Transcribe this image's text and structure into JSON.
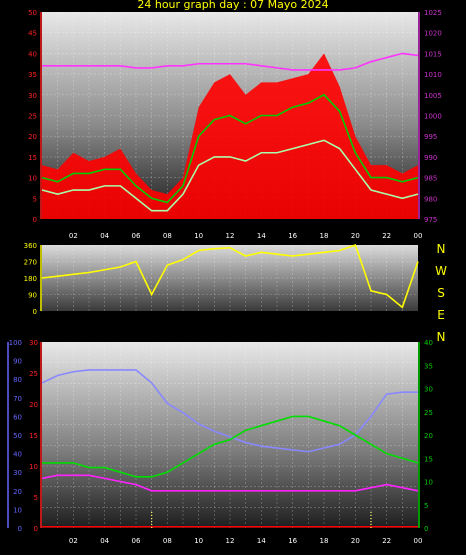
{
  "title": "24 hour graph day : 07 Mayo 2024",
  "x_ticks": [
    "02",
    "04",
    "06",
    "08",
    "10",
    "12",
    "14",
    "16",
    "18",
    "20",
    "22",
    "00"
  ],
  "chart_data": [
    {
      "type": "line",
      "yleft": {
        "ticks": [
          0,
          5,
          10,
          15,
          20,
          25,
          30,
          35,
          40,
          45,
          50
        ],
        "color": "#ff2020",
        "range": [
          0,
          50
        ]
      },
      "yright": {
        "ticks": [
          975,
          980,
          985,
          990,
          995,
          1000,
          1005,
          1010,
          1015,
          1020,
          1025
        ],
        "color": "#cc33cc",
        "range": [
          975,
          1025
        ]
      },
      "x": [
        0,
        1,
        2,
        3,
        4,
        5,
        6,
        7,
        8,
        9,
        10,
        11,
        12,
        13,
        14,
        15,
        16,
        17,
        18,
        19,
        20,
        21,
        22,
        23,
        24
      ],
      "series": [
        {
          "name": "",
          "color": "#ff0000",
          "kind": "bar",
          "axis": "left",
          "values": [
            13,
            12,
            16,
            14,
            15,
            17,
            11,
            7,
            6,
            10,
            27,
            33,
            35,
            30,
            33,
            33,
            34,
            35,
            40,
            32,
            20,
            13,
            13,
            11,
            13
          ]
        },
        {
          "name": "",
          "color": "#00cc00",
          "kind": "line",
          "axis": "left",
          "values": [
            10,
            9,
            11,
            11,
            12,
            12,
            8,
            5,
            4,
            8,
            20,
            24,
            25,
            23,
            25,
            25,
            27,
            28,
            30,
            26,
            16,
            10,
            10,
            9,
            10
          ]
        },
        {
          "name": "",
          "color": "#aaffaa",
          "kind": "line",
          "axis": "left",
          "values": [
            7,
            6,
            7,
            7,
            8,
            8,
            5,
            2,
            2,
            6,
            13,
            15,
            15,
            14,
            16,
            16,
            17,
            18,
            19,
            17,
            12,
            7,
            6,
            5,
            6
          ]
        },
        {
          "name": "",
          "color": "#ff33ff",
          "kind": "line",
          "axis": "right",
          "values": [
            1012,
            1012,
            1012,
            1012,
            1012,
            1012,
            1011.5,
            1011.5,
            1012,
            1012,
            1012.5,
            1012.5,
            1012.5,
            1012.5,
            1012,
            1011.5,
            1011,
            1011,
            1011,
            1011,
            1011.5,
            1013,
            1014,
            1015,
            1014.5
          ]
        }
      ]
    },
    {
      "type": "line",
      "yleft": {
        "ticks": [
          0,
          90,
          180,
          270,
          360
        ],
        "color": "#ffff00",
        "range": [
          0,
          360
        ]
      },
      "directions": [
        "N",
        "W",
        "S",
        "E",
        "N"
      ],
      "series": [
        {
          "name": "",
          "color": "#ffff00",
          "kind": "line",
          "axis": "left",
          "values": [
            180,
            190,
            200,
            210,
            225,
            240,
            270,
            90,
            250,
            280,
            330,
            340,
            345,
            300,
            320,
            310,
            300,
            310,
            320,
            330,
            360,
            110,
            90,
            20,
            270
          ]
        }
      ]
    },
    {
      "type": "line",
      "yleft_outer": {
        "ticks": [
          0,
          10,
          20,
          30,
          40,
          50,
          60,
          70,
          80,
          90,
          100
        ],
        "color": "#6666ff",
        "range": [
          0,
          100
        ]
      },
      "yleft_inner": {
        "ticks": [
          0,
          5,
          10,
          15,
          20,
          25,
          30
        ],
        "color": "#ff2020",
        "range": [
          0,
          30
        ]
      },
      "yright": {
        "ticks": [
          0,
          5,
          10,
          15,
          20,
          25,
          30,
          35,
          40
        ],
        "color": "#00cc00",
        "range": [
          0,
          40
        ]
      },
      "series": [
        {
          "name": "",
          "color": "#8888ff",
          "kind": "line",
          "axis": "outer",
          "values": [
            78,
            82,
            84,
            85,
            85,
            85,
            85,
            78,
            67,
            62,
            56,
            52,
            49,
            46,
            44,
            43,
            42,
            41,
            43,
            45,
            50,
            60,
            72,
            73,
            73
          ]
        },
        {
          "name": "",
          "color": "#00dd00",
          "kind": "line",
          "axis": "right",
          "values": [
            14,
            14,
            14,
            13,
            13,
            12,
            11,
            11,
            12,
            14,
            16,
            18,
            19,
            21,
            22,
            23,
            24,
            24,
            23,
            22,
            20,
            18,
            16,
            15,
            14
          ]
        },
        {
          "name": "",
          "color": "#ff22ff",
          "kind": "line",
          "axis": "inner",
          "values": [
            8,
            8.5,
            8.5,
            8.5,
            8,
            7.5,
            7,
            6,
            6,
            6,
            6,
            6,
            6,
            6,
            6,
            6,
            6,
            6,
            6,
            6,
            6,
            6.5,
            7,
            6.5,
            6
          ]
        },
        {
          "name": "",
          "color": "#ff0000",
          "kind": "line",
          "axis": "inner",
          "values": [
            0.2,
            0.2,
            0.2,
            0.2,
            0.2,
            0.2,
            0.2,
            0.2,
            0.2,
            0.2,
            0.2,
            0.2,
            0.2,
            0.2,
            0.2,
            0.2,
            0.2,
            0.2,
            0.2,
            0.2,
            0.2,
            0.2,
            0.2,
            0.2,
            0.2
          ]
        }
      ],
      "markers": [
        7,
        21
      ]
    }
  ]
}
